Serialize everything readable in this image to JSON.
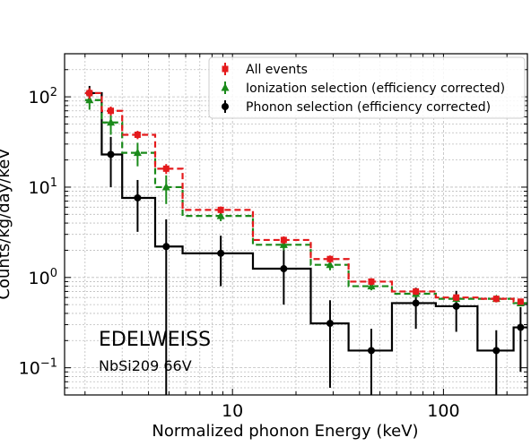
{
  "chart_data": {
    "type": "line",
    "step": true,
    "xscale": "log",
    "yscale": "log",
    "xlabel": "Normalized phonon Energy (keV)",
    "ylabel": "Counts/kg/day/keV",
    "xlim": [
      1.6,
      250
    ],
    "ylim": [
      0.05,
      300
    ],
    "grid": true,
    "legend_position": "top-right",
    "x_ticks": [
      {
        "value": 10,
        "label": "10"
      },
      {
        "value": 100,
        "label": "100"
      }
    ],
    "y_ticks": [
      {
        "value": 0.1,
        "base": "10",
        "exp": "−1"
      },
      {
        "value": 1,
        "base": "10",
        "exp": "0"
      },
      {
        "value": 10,
        "base": "10",
        "exp": "1"
      },
      {
        "value": 100,
        "base": "10",
        "exp": "2"
      }
    ],
    "bin_edges": [
      2.0,
      2.4,
      3.0,
      4.3,
      5.8,
      12.5,
      23.5,
      35.5,
      57.0,
      92.0,
      145.0,
      215.0,
      250.0
    ],
    "annotations": [
      {
        "text": "EDELWEISS",
        "size": "big"
      },
      {
        "text": "NbSi209 66V",
        "size": "small"
      }
    ],
    "series": [
      {
        "name": "All events",
        "color": "#e41a1c",
        "marker": "square",
        "linestyle": "dashed",
        "x": [
          2.1,
          2.65,
          3.55,
          4.85,
          8.8,
          17.5,
          29.0,
          45.5,
          74.0,
          115.0,
          178.0,
          232.0
        ],
        "y": [
          110,
          70,
          38,
          16,
          5.6,
          2.6,
          1.6,
          0.9,
          0.7,
          0.6,
          0.58,
          0.54
        ],
        "yerr_low": [
          95,
          62,
          34,
          14,
          5.1,
          2.35,
          1.45,
          0.82,
          0.64,
          0.55,
          0.53,
          0.5
        ],
        "yerr_high": [
          125,
          78,
          42,
          18,
          6.1,
          2.85,
          1.75,
          0.98,
          0.76,
          0.65,
          0.63,
          0.58
        ]
      },
      {
        "name": "Ionization selection (efficiency corrected)",
        "color": "#1a8a1a",
        "marker": "triangle",
        "linestyle": "dashed",
        "x": [
          2.1,
          2.65,
          3.55,
          4.85,
          8.8,
          17.5,
          29.0,
          45.5,
          74.0,
          115.0,
          178.0,
          232.0
        ],
        "y": [
          92,
          52,
          24,
          10,
          4.8,
          2.3,
          1.38,
          0.8,
          0.66,
          0.58,
          0.58,
          0.52
        ],
        "yerr_low": [
          72,
          38,
          17,
          6.5,
          4.2,
          2.0,
          1.2,
          0.72,
          0.6,
          0.53,
          0.53,
          0.48
        ],
        "yerr_high": [
          112,
          66,
          31,
          13.5,
          5.4,
          2.6,
          1.55,
          0.88,
          0.72,
          0.63,
          0.63,
          0.56
        ]
      },
      {
        "name": "Phonon selection (efficiency corrected)",
        "color": "#000000",
        "marker": "circle",
        "linestyle": "solid",
        "x": [
          2.1,
          2.65,
          3.55,
          4.85,
          8.8,
          17.5,
          29.0,
          45.5,
          74.0,
          115.0,
          178.0,
          232.0
        ],
        "y": [
          110,
          23,
          7.6,
          2.2,
          1.85,
          1.25,
          0.31,
          0.155,
          0.52,
          0.48,
          0.155,
          0.28
        ],
        "yerr_low": [
          88,
          10,
          3.2,
          0.04,
          0.8,
          0.5,
          0.06,
          0.04,
          0.27,
          0.25,
          0.05,
          0.09
        ],
        "yerr_high": [
          132,
          36,
          12,
          4.4,
          2.9,
          2.0,
          0.56,
          0.27,
          0.77,
          0.71,
          0.26,
          0.47
        ]
      }
    ]
  }
}
